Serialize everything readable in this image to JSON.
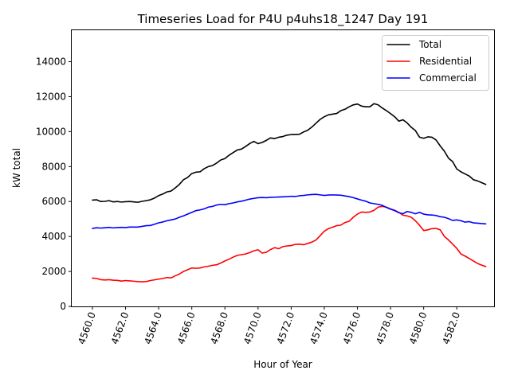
{
  "chart_data": {
    "type": "line",
    "title": "Timeseries Load for P4U p4uhs18_1247  Day 191",
    "xlabel": "Hour of Year",
    "ylabel": "kW total",
    "xlim": [
      4558.75,
      4584.25
    ],
    "ylim": [
      0,
      15800
    ],
    "x_ticks": [
      4560,
      4562,
      4564,
      4566,
      4568,
      4570,
      4572,
      4574,
      4576,
      4578,
      4580,
      4582
    ],
    "x_tick_labels": [
      "4560.0",
      "4562.0",
      "4564.0",
      "4566.0",
      "4568.0",
      "4570.0",
      "4572.0",
      "4574.0",
      "4576.0",
      "4578.0",
      "4580.0",
      "4582.0"
    ],
    "y_ticks": [
      0,
      2000,
      4000,
      6000,
      8000,
      10000,
      12000,
      14000
    ],
    "y_tick_labels": [
      "0",
      "2000",
      "4000",
      "6000",
      "8000",
      "10000",
      "12000",
      "14000"
    ],
    "grid": false,
    "legend_position": "top-right",
    "x": [
      4560.0,
      4560.25,
      4560.5,
      4560.75,
      4561.0,
      4561.25,
      4561.5,
      4561.75,
      4562.0,
      4562.25,
      4562.5,
      4562.75,
      4563.0,
      4563.25,
      4563.5,
      4563.75,
      4564.0,
      4564.25,
      4564.5,
      4564.75,
      4565.0,
      4565.25,
      4565.5,
      4565.75,
      4566.0,
      4566.25,
      4566.5,
      4566.75,
      4567.0,
      4567.25,
      4567.5,
      4567.75,
      4568.0,
      4568.25,
      4568.5,
      4568.75,
      4569.0,
      4569.25,
      4569.5,
      4569.75,
      4570.0,
      4570.25,
      4570.5,
      4570.75,
      4571.0,
      4571.25,
      4571.5,
      4571.75,
      4572.0,
      4572.25,
      4572.5,
      4572.75,
      4573.0,
      4573.25,
      4573.5,
      4573.75,
      4574.0,
      4574.25,
      4574.5,
      4574.75,
      4575.0,
      4575.25,
      4575.5,
      4575.75,
      4576.0,
      4576.25,
      4576.5,
      4576.75,
      4577.0,
      4577.25,
      4577.5,
      4577.75,
      4578.0,
      4578.25,
      4578.5,
      4578.75,
      4579.0,
      4579.25,
      4579.5,
      4579.75,
      4580.0,
      4580.25,
      4580.5,
      4580.75,
      4581.0,
      4581.25,
      4581.5,
      4581.75,
      4582.0,
      4582.25,
      4582.5,
      4582.75,
      4583.0,
      4583.25,
      4583.5,
      4583.75
    ],
    "series": [
      {
        "name": "Total",
        "color": "#000000",
        "values": [
          6080,
          6100,
          6000,
          6010,
          6050,
          5980,
          6000,
          5970,
          5990,
          6000,
          5980,
          5960,
          6010,
          6050,
          6100,
          6200,
          6340,
          6430,
          6550,
          6600,
          6780,
          6980,
          7250,
          7380,
          7600,
          7680,
          7700,
          7880,
          8000,
          8060,
          8200,
          8380,
          8460,
          8650,
          8800,
          8950,
          9000,
          9150,
          9320,
          9440,
          9310,
          9380,
          9500,
          9640,
          9600,
          9680,
          9720,
          9800,
          9830,
          9840,
          9850,
          9980,
          10080,
          10260,
          10480,
          10700,
          10850,
          10960,
          11000,
          11040,
          11200,
          11280,
          11420,
          11530,
          11580,
          11460,
          11420,
          11420,
          11600,
          11530,
          11350,
          11200,
          11030,
          10850,
          10600,
          10680,
          10500,
          10250,
          10060,
          9680,
          9620,
          9700,
          9680,
          9520,
          9180,
          8880,
          8480,
          8280,
          7860,
          7700,
          7580,
          7460,
          7250,
          7180,
          7080,
          6980
        ]
      },
      {
        "name": "Residential",
        "color": "#ff0000",
        "values": [
          1620,
          1600,
          1530,
          1510,
          1530,
          1500,
          1490,
          1450,
          1480,
          1460,
          1440,
          1420,
          1410,
          1420,
          1480,
          1520,
          1560,
          1600,
          1650,
          1630,
          1750,
          1850,
          2000,
          2100,
          2200,
          2180,
          2200,
          2260,
          2300,
          2350,
          2380,
          2480,
          2600,
          2700,
          2820,
          2920,
          2960,
          3000,
          3080,
          3180,
          3240,
          3050,
          3100,
          3250,
          3360,
          3300,
          3420,
          3460,
          3480,
          3550,
          3560,
          3530,
          3600,
          3680,
          3800,
          4050,
          4300,
          4450,
          4530,
          4620,
          4650,
          4800,
          4870,
          5100,
          5280,
          5400,
          5380,
          5400,
          5500,
          5680,
          5720,
          5680,
          5580,
          5500,
          5380,
          5220,
          5180,
          5100,
          4900,
          4640,
          4340,
          4380,
          4450,
          4460,
          4380,
          4000,
          3800,
          3560,
          3320,
          3000,
          2880,
          2740,
          2600,
          2460,
          2360,
          2280
        ]
      },
      {
        "name": "Commercial",
        "color": "#0000ff",
        "values": [
          4460,
          4500,
          4480,
          4500,
          4520,
          4490,
          4510,
          4520,
          4510,
          4540,
          4540,
          4540,
          4580,
          4620,
          4630,
          4700,
          4780,
          4830,
          4900,
          4950,
          5000,
          5100,
          5180,
          5280,
          5380,
          5480,
          5520,
          5580,
          5680,
          5720,
          5800,
          5840,
          5820,
          5880,
          5920,
          5980,
          6020,
          6080,
          6140,
          6180,
          6220,
          6230,
          6220,
          6240,
          6250,
          6260,
          6270,
          6280,
          6300,
          6290,
          6330,
          6350,
          6380,
          6400,
          6410,
          6380,
          6350,
          6370,
          6380,
          6370,
          6360,
          6320,
          6280,
          6220,
          6150,
          6080,
          6020,
          5920,
          5880,
          5840,
          5780,
          5660,
          5560,
          5480,
          5360,
          5300,
          5430,
          5380,
          5300,
          5380,
          5280,
          5240,
          5230,
          5200,
          5130,
          5100,
          5020,
          4920,
          4950,
          4900,
          4820,
          4850,
          4780,
          4760,
          4740,
          4720
        ]
      }
    ]
  }
}
